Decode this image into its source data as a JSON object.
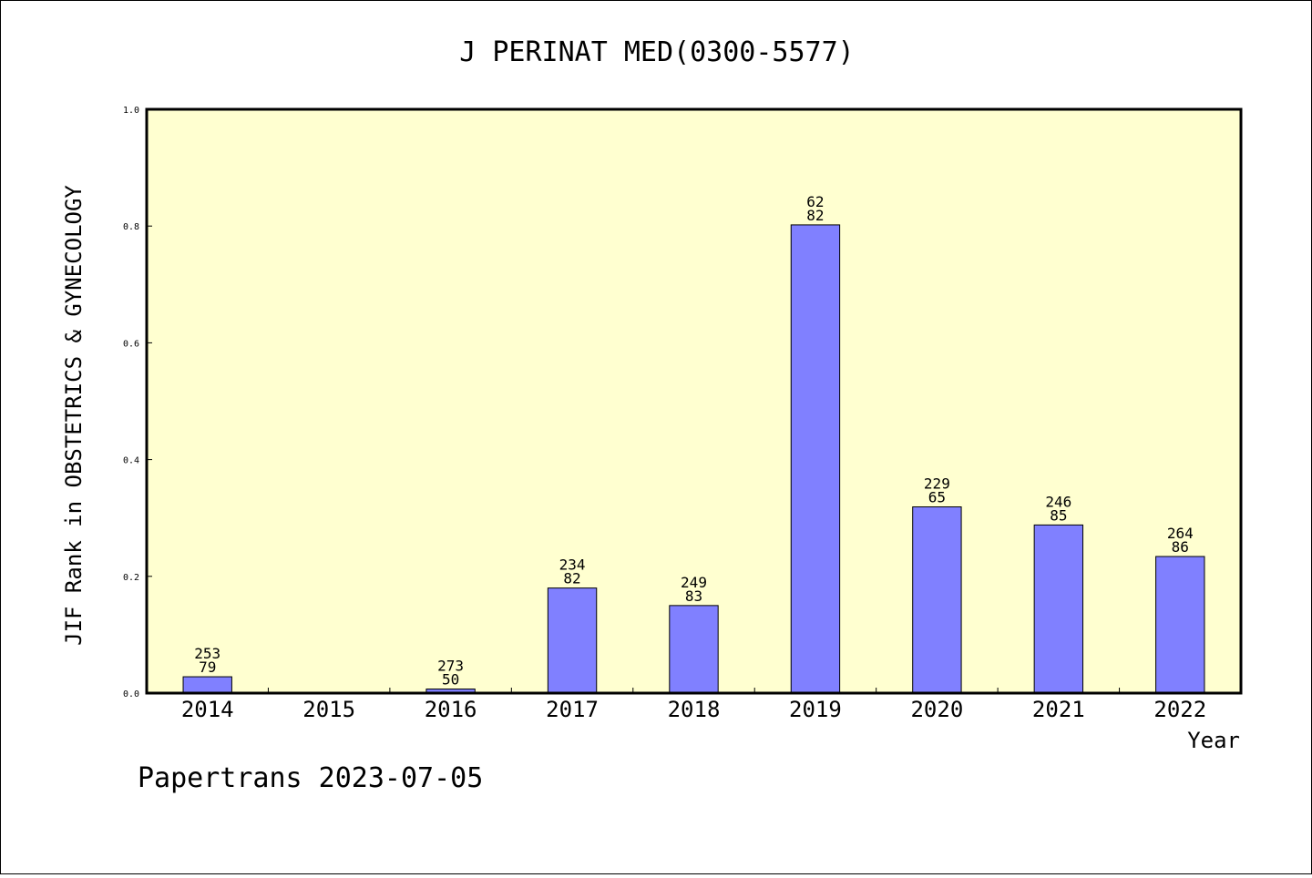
{
  "chart_data": {
    "type": "bar",
    "title": "J PERINAT MED(0300-5577)",
    "xlabel": "Year",
    "ylabel": "JIF Rank in OBSTETRICS & GYNECOLOGY",
    "ylim": [
      0,
      1.0
    ],
    "yticks": [
      "0.0",
      "0.2",
      "0.4",
      "0.6",
      "0.8",
      "1.0"
    ],
    "categories": [
      "2014",
      "2015",
      "2016",
      "2017",
      "2018",
      "2019",
      "2020",
      "2021",
      "2022"
    ],
    "values": [
      0.028,
      null,
      0.007,
      0.18,
      0.15,
      0.802,
      0.319,
      0.288,
      0.234
    ],
    "labels": [
      [
        "253",
        "79"
      ],
      null,
      [
        "273",
        "50"
      ],
      [
        "234",
        "82"
      ],
      [
        "249",
        "83"
      ],
      [
        "62",
        "82"
      ],
      [
        "229",
        "65"
      ],
      [
        "246",
        "85"
      ],
      [
        "264",
        "86"
      ]
    ],
    "grid": false,
    "colors": {
      "plot_background": "#ffffd0",
      "bar": "#8080ff"
    }
  },
  "footer": "Papertrans 2023-07-05"
}
